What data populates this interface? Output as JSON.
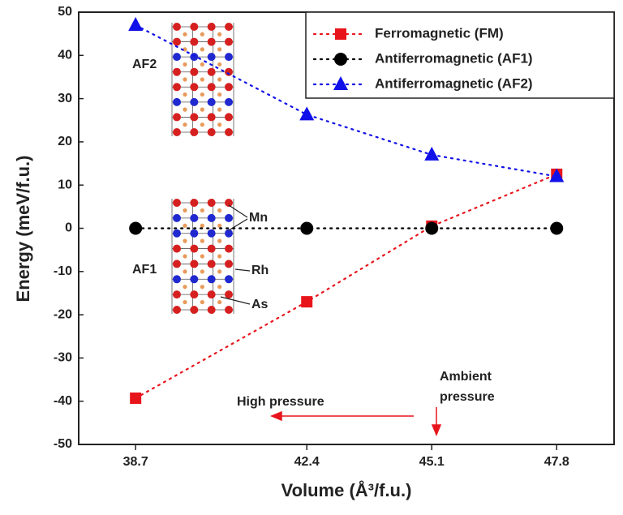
{
  "chart_data": {
    "type": "line",
    "x_label": "Volume (Å³/f.u.)",
    "y_label": "Energy (meV/f.u.)",
    "x": [
      38.7,
      42.4,
      45.1,
      47.8
    ],
    "xlim": [
      37.47,
      49.04
    ],
    "xticks": [
      38.7,
      42.4,
      45.1,
      47.8
    ],
    "ylim": [
      -50,
      50
    ],
    "yticks": [
      -50,
      -40,
      -30,
      -20,
      -10,
      0,
      10,
      20,
      30,
      40,
      50
    ],
    "legend": "top-right",
    "series": [
      {
        "name": "Ferromagnetic (FM)",
        "color": "#e8141c",
        "marker": "square",
        "values": [
          -39.3,
          -17,
          0.5,
          12.5
        ]
      },
      {
        "name": "Antiferromagnetic (AF1)",
        "color": "#000000",
        "marker": "circle",
        "values": [
          0,
          0,
          0,
          0
        ]
      },
      {
        "name": "Antiferromagnetic (AF2)",
        "color": "#1010e8",
        "marker": "triangle",
        "values": [
          47,
          26.3,
          17,
          12
        ]
      }
    ],
    "annotations": {
      "af2": "AF2",
      "af1": "AF1",
      "mn": "Mn",
      "rh": "Rh",
      "as": "As",
      "high_pressure": "High pressure",
      "ambient_pressure": [
        "Ambient",
        "pressure"
      ]
    }
  }
}
